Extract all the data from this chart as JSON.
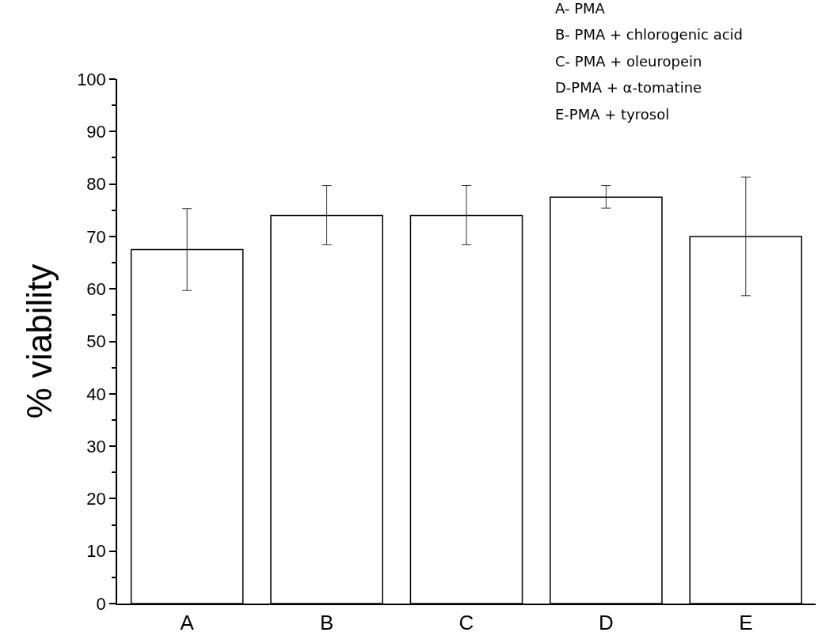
{
  "chart_data": {
    "type": "bar",
    "ylabel": "% viability",
    "categories": [
      "A",
      "B",
      "C",
      "D",
      "E"
    ],
    "values": [
      67.5,
      74,
      74,
      77.5,
      70
    ],
    "errors": [
      [
        59.7,
        75.3
      ],
      [
        68.4,
        79.7
      ],
      [
        68.4,
        79.7
      ],
      [
        75.4,
        79.7
      ],
      [
        58.7,
        81.3
      ]
    ],
    "color": "#ffffff",
    "ylim": [
      0,
      100
    ],
    "yticks": [
      0,
      10,
      20,
      30,
      40,
      50,
      60,
      70,
      80,
      90,
      100
    ],
    "grid": false,
    "legend": false,
    "annotations": [
      "A- PMA",
      "B- PMA + chlorogenic acid",
      "C- PMA + oleuropein",
      "D-PMA + α-tomatine",
      "E-PMA + tyrosol"
    ]
  }
}
